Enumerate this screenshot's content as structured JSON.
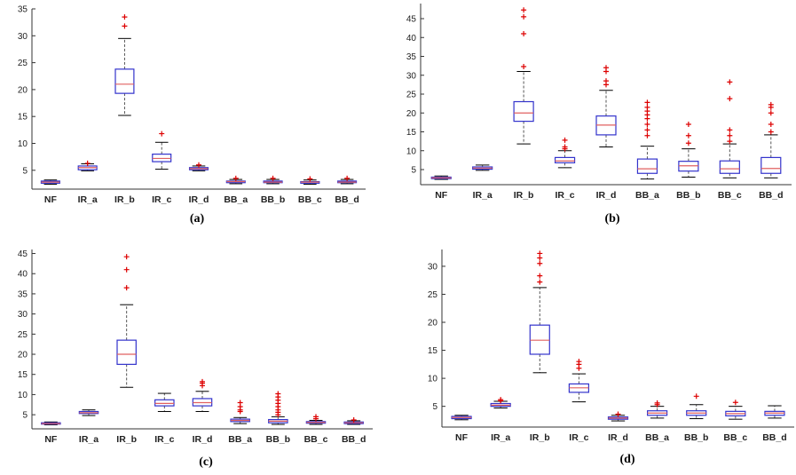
{
  "colors": {
    "box": "#3333cc",
    "median": "#e06060",
    "whisker": "#555555",
    "outlier": "#dd0000",
    "axis": "#333333"
  },
  "chart_data": [
    {
      "type": "box",
      "panel_label": "(a)",
      "categories": [
        "NF",
        "IR_a",
        "IR_b",
        "IR_c",
        "IR_d",
        "BB_a",
        "BB_b",
        "BB_c",
        "BB_d"
      ],
      "yticks": [
        5,
        10,
        15,
        20,
        25,
        30,
        35
      ],
      "ylim": [
        1.5,
        35
      ],
      "boxes": [
        {
          "min": 2.4,
          "q1": 2.6,
          "median": 2.8,
          "q3": 3.0,
          "max": 3.2,
          "outliers": []
        },
        {
          "min": 4.9,
          "q1": 5.1,
          "median": 5.5,
          "q3": 5.8,
          "max": 6.2,
          "outliers": [
            6.3
          ]
        },
        {
          "min": 15.2,
          "q1": 19.3,
          "median": 21.0,
          "q3": 23.8,
          "max": 29.5,
          "outliers": [
            31.8,
            33.5
          ]
        },
        {
          "min": 5.2,
          "q1": 6.6,
          "median": 7.2,
          "q3": 8.0,
          "max": 10.2,
          "outliers": [
            11.8
          ]
        },
        {
          "min": 4.9,
          "q1": 5.1,
          "median": 5.3,
          "q3": 5.5,
          "max": 5.8,
          "outliers": [
            6.0
          ]
        },
        {
          "min": 2.5,
          "q1": 2.7,
          "median": 2.9,
          "q3": 3.0,
          "max": 3.3,
          "outliers": [
            3.5
          ]
        },
        {
          "min": 2.5,
          "q1": 2.7,
          "median": 2.8,
          "q3": 3.0,
          "max": 3.3,
          "outliers": [
            3.5
          ]
        },
        {
          "min": 2.4,
          "q1": 2.6,
          "median": 2.8,
          "q3": 2.9,
          "max": 3.2,
          "outliers": [
            3.4
          ]
        },
        {
          "min": 2.5,
          "q1": 2.7,
          "median": 2.8,
          "q3": 3.0,
          "max": 3.3,
          "outliers": [
            3.5
          ]
        }
      ]
    },
    {
      "type": "box",
      "panel_label": "(b)",
      "categories": [
        "NF",
        "IR_a",
        "IR_b",
        "IR_c",
        "IR_d",
        "BB_a",
        "BB_b",
        "BB_c",
        "BB_d"
      ],
      "yticks": [
        5,
        10,
        15,
        20,
        25,
        30,
        35,
        40,
        45
      ],
      "ylim": [
        1,
        49
      ],
      "boxes": [
        {
          "min": 2.4,
          "q1": 2.6,
          "median": 2.8,
          "q3": 3.0,
          "max": 3.3,
          "outliers": []
        },
        {
          "min": 4.8,
          "q1": 5.1,
          "median": 5.4,
          "q3": 5.7,
          "max": 6.2,
          "outliers": []
        },
        {
          "min": 11.8,
          "q1": 17.8,
          "median": 20.0,
          "q3": 23.0,
          "max": 31.0,
          "outliers": [
            32.3,
            41.0,
            45.5,
            47.3
          ]
        },
        {
          "min": 5.5,
          "q1": 6.8,
          "median": 7.3,
          "q3": 8.2,
          "max": 10.0,
          "outliers": [
            10.5,
            11.0,
            12.8
          ]
        },
        {
          "min": 11.0,
          "q1": 14.2,
          "median": 16.8,
          "q3": 19.2,
          "max": 26.0,
          "outliers": [
            27.5,
            28.5,
            31.0,
            32.0
          ]
        },
        {
          "min": 2.5,
          "q1": 4.0,
          "median": 5.2,
          "q3": 7.8,
          "max": 11.2,
          "outliers": [
            14.0,
            15.5,
            17.0,
            18.5,
            19.5,
            20.5,
            21.5,
            22.8
          ]
        },
        {
          "min": 3.0,
          "q1": 4.6,
          "median": 6.0,
          "q3": 7.2,
          "max": 10.5,
          "outliers": [
            12.0,
            14.0,
            17.0
          ]
        },
        {
          "min": 2.8,
          "q1": 4.0,
          "median": 5.2,
          "q3": 7.3,
          "max": 11.8,
          "outliers": [
            12.5,
            14.0,
            15.5,
            23.8,
            28.2
          ]
        },
        {
          "min": 2.8,
          "q1": 4.0,
          "median": 5.3,
          "q3": 8.2,
          "max": 14.2,
          "outliers": [
            15.0,
            17.0,
            20.0,
            21.5,
            22.2
          ]
        }
      ]
    },
    {
      "type": "box",
      "panel_label": "(c)",
      "categories": [
        "NF",
        "IR_a",
        "IR_b",
        "IR_c",
        "IR_d",
        "BB_a",
        "BB_b",
        "BB_c",
        "BB_d"
      ],
      "yticks": [
        5,
        10,
        15,
        20,
        25,
        30,
        35,
        40,
        45
      ],
      "ylim": [
        1.5,
        46
      ],
      "boxes": [
        {
          "min": 2.5,
          "q1": 2.7,
          "median": 2.8,
          "q3": 3.0,
          "max": 3.2,
          "outliers": []
        },
        {
          "min": 4.8,
          "q1": 5.3,
          "median": 5.5,
          "q3": 5.8,
          "max": 6.2,
          "outliers": []
        },
        {
          "min": 11.8,
          "q1": 17.5,
          "median": 20.0,
          "q3": 23.5,
          "max": 32.3,
          "outliers": [
            36.5,
            41.0,
            44.2
          ]
        },
        {
          "min": 5.8,
          "q1": 7.2,
          "median": 7.8,
          "q3": 8.7,
          "max": 10.3,
          "outliers": []
        },
        {
          "min": 5.8,
          "q1": 7.2,
          "median": 8.0,
          "q3": 9.0,
          "max": 10.8,
          "outliers": [
            12.2,
            12.8,
            13.2
          ]
        },
        {
          "min": 2.8,
          "q1": 3.3,
          "median": 3.6,
          "q3": 3.9,
          "max": 4.3,
          "outliers": [
            5.8,
            6.2,
            7.0,
            8.0
          ]
        },
        {
          "min": 2.6,
          "q1": 3.0,
          "median": 3.4,
          "q3": 3.8,
          "max": 4.5,
          "outliers": [
            5.0,
            5.6,
            6.2,
            7.0,
            7.8,
            8.6,
            9.4,
            10.2
          ]
        },
        {
          "min": 2.6,
          "q1": 2.9,
          "median": 3.1,
          "q3": 3.3,
          "max": 3.6,
          "outliers": [
            4.0,
            4.5
          ]
        },
        {
          "min": 2.6,
          "q1": 2.8,
          "median": 3.0,
          "q3": 3.2,
          "max": 3.5,
          "outliers": [
            3.7
          ]
        }
      ]
    },
    {
      "type": "box",
      "panel_label": "(d)",
      "categories": [
        "NF",
        "IR_a",
        "IR_b",
        "IR_c",
        "IR_d",
        "BB_a",
        "BB_b",
        "BB_c",
        "BB_d"
      ],
      "yticks": [
        5,
        10,
        15,
        20,
        25,
        30
      ],
      "ylim": [
        1.3,
        33
      ],
      "boxes": [
        {
          "min": 2.6,
          "q1": 2.8,
          "median": 3.0,
          "q3": 3.2,
          "max": 3.4,
          "outliers": []
        },
        {
          "min": 4.7,
          "q1": 5.0,
          "median": 5.2,
          "q3": 5.5,
          "max": 5.9,
          "outliers": [
            6.0,
            6.2
          ]
        },
        {
          "min": 11.0,
          "q1": 14.3,
          "median": 16.8,
          "q3": 19.5,
          "max": 26.2,
          "outliers": [
            27.2,
            28.3,
            30.5,
            31.5,
            32.3
          ]
        },
        {
          "min": 5.8,
          "q1": 7.5,
          "median": 8.3,
          "q3": 9.0,
          "max": 10.8,
          "outliers": [
            11.8,
            12.5,
            13.0
          ]
        },
        {
          "min": 2.4,
          "q1": 2.7,
          "median": 2.9,
          "q3": 3.1,
          "max": 3.4,
          "outliers": [
            3.6
          ]
        },
        {
          "min": 2.9,
          "q1": 3.4,
          "median": 3.8,
          "q3": 4.2,
          "max": 5.0,
          "outliers": [
            5.3,
            5.6
          ]
        },
        {
          "min": 2.8,
          "q1": 3.4,
          "median": 3.8,
          "q3": 4.2,
          "max": 5.3,
          "outliers": [
            6.8
          ]
        },
        {
          "min": 2.7,
          "q1": 3.3,
          "median": 3.7,
          "q3": 4.1,
          "max": 5.0,
          "outliers": [
            5.7
          ]
        },
        {
          "min": 2.9,
          "q1": 3.4,
          "median": 3.8,
          "q3": 4.1,
          "max": 5.1,
          "outliers": []
        }
      ]
    }
  ]
}
